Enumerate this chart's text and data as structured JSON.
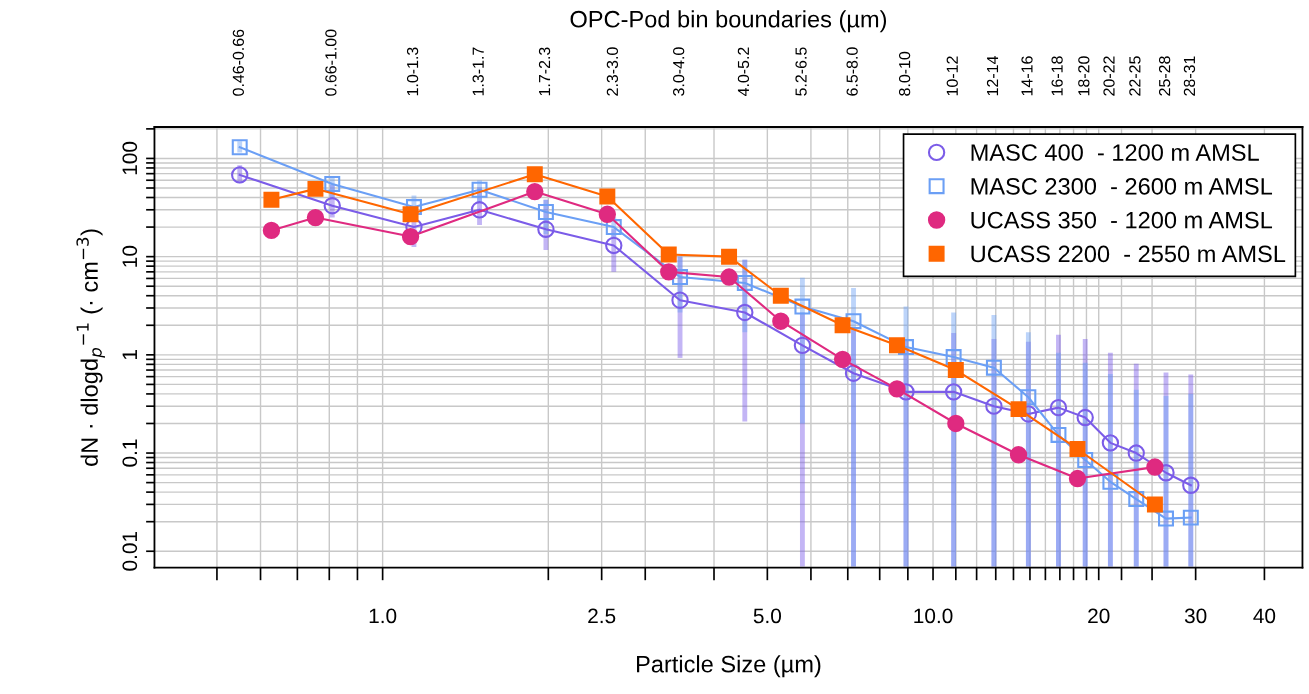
{
  "chart_data": {
    "type": "line",
    "xlabel": "Particle Size (µm)",
    "x2label": "OPC-Pod bin boundaries (µm)",
    "ylabel": "dN · dlogd$_{p}$$^{−1}$ (· cm$^{−3}$)",
    "log": "xy",
    "grid": true,
    "legend": "top right",
    "line_style": "solid",
    "xlim": [
      0.385,
      46.9
    ],
    "ylim": [
      0.0068,
      209
    ],
    "xticks": [
      {
        "value": 0.5,
        "label": null
      },
      {
        "value": 0.6,
        "label": null
      },
      {
        "value": 0.7,
        "label": null
      },
      {
        "value": 0.8,
        "label": null
      },
      {
        "value": 0.9,
        "label": null
      },
      {
        "value": 1,
        "label": "1.0"
      },
      {
        "value": 2,
        "label": null
      },
      {
        "value": 2.5,
        "label": "2.5"
      },
      {
        "value": 3,
        "label": null
      },
      {
        "value": 4,
        "label": null
      },
      {
        "value": 5,
        "label": "5.0"
      },
      {
        "value": 6,
        "label": null
      },
      {
        "value": 7,
        "label": null
      },
      {
        "value": 8,
        "label": null
      },
      {
        "value": 9,
        "label": null
      },
      {
        "value": 10,
        "label": "10.0"
      },
      {
        "value": 11,
        "label": null
      },
      {
        "value": 12,
        "label": null
      },
      {
        "value": 13,
        "label": null
      },
      {
        "value": 14,
        "label": null
      },
      {
        "value": 15,
        "label": null
      },
      {
        "value": 16,
        "label": null
      },
      {
        "value": 17,
        "label": null
      },
      {
        "value": 18,
        "label": null
      },
      {
        "value": 19,
        "label": null
      },
      20,
      {
        "value": 22,
        "label": null
      },
      {
        "value": 25,
        "label": null
      },
      30,
      40
    ],
    "annotations": [
      "0.46-0.66",
      "0.66-1.00",
      "1.0-1.3",
      "1.3-1.7",
      "1.7-2.3",
      "2.3-3.0",
      "3.0-4.0",
      "4.0-5.2",
      "5.2-6.5",
      "6.5-8.0",
      "8.0-10",
      "10-12",
      "12-14",
      "14-16",
      "16-18",
      "18-20",
      "20-22",
      "22-25",
      "25-28",
      "28-31"
    ],
    "yticks": [
      {
        "value": 0.01,
        "label": "0.01"
      },
      {
        "value": 0.02,
        "label": null
      },
      {
        "value": 0.03,
        "label": null
      },
      {
        "value": 0.04,
        "label": null
      },
      {
        "value": 0.05,
        "label": null
      },
      {
        "value": 0.06,
        "label": null
      },
      {
        "value": 0.07,
        "label": null
      },
      {
        "value": 0.08,
        "label": null
      },
      {
        "value": 0.09,
        "label": null
      },
      {
        "value": 0.1,
        "label": "0.1"
      },
      {
        "value": 0.2,
        "label": null
      },
      {
        "value": 0.3,
        "label": null
      },
      {
        "value": 0.4,
        "label": null
      },
      {
        "value": 0.5,
        "label": null
      },
      {
        "value": 0.6,
        "label": null
      },
      {
        "value": 0.7,
        "label": null
      },
      {
        "value": 0.8,
        "label": null
      },
      {
        "value": 0.9,
        "label": null
      },
      1,
      {
        "value": 2,
        "label": null
      },
      {
        "value": 3,
        "label": null
      },
      {
        "value": 4,
        "label": null
      },
      {
        "value": 5,
        "label": null
      },
      {
        "value": 6,
        "label": null
      },
      {
        "value": 7,
        "label": null
      },
      {
        "value": 8,
        "label": null
      },
      {
        "value": 9,
        "label": null
      },
      10,
      {
        "value": 20,
        "label": null
      },
      {
        "value": 30,
        "label": null
      },
      {
        "value": 40,
        "label": null
      },
      {
        "value": 50,
        "label": null
      },
      {
        "value": 60,
        "label": null
      },
      {
        "value": 70,
        "label": null
      },
      {
        "value": 80,
        "label": null
      },
      {
        "value": 90,
        "label": null
      },
      100,
      {
        "value": 200,
        "label": null
      }
    ],
    "series": [
      {
        "name": "MASC 400  - 1200 m AMSL",
        "color": "#7b5ce8",
        "marker": "circle",
        "x": [
          0.55,
          0.81,
          1.14,
          1.5,
          1.98,
          2.63,
          3.47,
          4.55,
          5.79,
          7.17,
          8.93,
          10.9,
          12.9,
          14.9,
          16.9,
          18.9,
          21.0,
          23.4,
          26.5,
          29.4
        ],
        "values": [
          68,
          33,
          20,
          30,
          19,
          13,
          3.6,
          2.7,
          1.25,
          0.65,
          0.42,
          0.42,
          0.3,
          0.25,
          0.29,
          0.23,
          0.127,
          0.1,
          0.063,
          0.047
        ],
        "errors": [
          [
            56,
            85
          ],
          [
            25,
            54
          ],
          [
            12.5,
            30
          ],
          [
            21,
            51
          ],
          [
            11.7,
            38
          ],
          [
            7,
            19
          ],
          [
            0.93,
            10
          ],
          [
            0.21,
            9.3
          ],
          [
            0.007,
            2.7
          ],
          [
            0.007,
            1.9
          ],
          [
            0.007,
            1.4
          ],
          [
            0.007,
            1.67
          ],
          [
            0.007,
            1.45
          ],
          [
            0.007,
            1.36
          ],
          [
            0.007,
            1.6
          ],
          [
            0.007,
            1.45
          ],
          [
            0.007,
            1.05
          ],
          [
            0.007,
            0.81
          ],
          [
            0.007,
            0.66
          ],
          [
            0.007,
            0.63
          ]
        ]
      },
      {
        "name": "MASC 2300  - 2600 m AMSL",
        "color": "#6b9ff5",
        "marker": "square",
        "x": [
          0.55,
          0.81,
          1.14,
          1.5,
          1.98,
          2.63,
          3.47,
          4.55,
          5.79,
          7.17,
          8.93,
          10.9,
          12.9,
          14.9,
          16.9,
          18.9,
          21.0,
          23.4,
          26.5,
          29.4
        ],
        "values": [
          130,
          55,
          32,
          48,
          28.5,
          20,
          6.2,
          5.4,
          3.1,
          2.2,
          1.2,
          0.95,
          0.74,
          0.37,
          0.153,
          0.085,
          0.051,
          0.034,
          0.0215,
          0.022
        ],
        "errors": [
          [
            115,
            150
          ],
          [
            40,
            65
          ],
          [
            23,
            42
          ],
          [
            35,
            60
          ],
          [
            17,
            38
          ],
          [
            15,
            25
          ],
          [
            2.7,
            10
          ],
          [
            1.7,
            9.3
          ],
          [
            0.2,
            6.1
          ],
          [
            0.007,
            4.8
          ],
          [
            0.007,
            3.1
          ],
          [
            0.007,
            2.7
          ],
          [
            0.007,
            2.55
          ],
          [
            0.007,
            1.7
          ],
          [
            0.007,
            1.05
          ],
          [
            0.007,
            0.83
          ],
          [
            0.007,
            0.64
          ],
          [
            0.007,
            0.44
          ],
          [
            0.007,
            0.38
          ],
          [
            0.007,
            0.4
          ]
        ]
      },
      {
        "name": "UCASS 350  - 1200 m AMSL",
        "color": "#df2a80",
        "marker": "circle",
        "x": [
          0.628,
          0.755,
          1.124,
          1.89,
          2.56,
          3.31,
          4.26,
          5.29,
          6.85,
          8.6,
          11.0,
          14.3,
          18.3,
          25.3
        ],
        "values": [
          18.5,
          25,
          16,
          46,
          27,
          7,
          6.2,
          2.2,
          0.9,
          0.45,
          0.2,
          0.096,
          0.055,
          0.072
        ]
      },
      {
        "name": "UCASS 2200  - 2550 m AMSL",
        "color": "#ff6600",
        "marker": "square",
        "x": [
          0.628,
          0.755,
          1.124,
          1.89,
          2.56,
          3.31,
          4.26,
          5.29,
          6.85,
          8.6,
          11.0,
          14.3,
          18.3,
          25.3
        ],
        "values": [
          38,
          49,
          27,
          69,
          41,
          10.5,
          10,
          4,
          2.0,
          1.25,
          0.7,
          0.28,
          0.11,
          0.03
        ]
      }
    ]
  }
}
